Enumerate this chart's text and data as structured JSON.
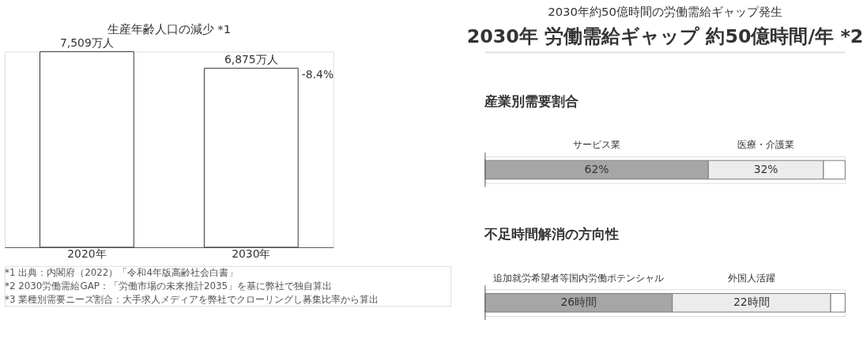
{
  "chart_data": [
    {
      "type": "bar",
      "title": "生産年齢人口の減少 *1",
      "categories": [
        "2020年",
        "2030年"
      ],
      "values": [
        7509,
        6875
      ],
      "value_labels": [
        "7,509万人",
        "6,875万人"
      ],
      "color": "#ffffff",
      "annotations": [
        "-8.4%",
        "*1 出典：内閣府（2022）「令和4年版高齢社会白書」",
        "*2 2030労働需給GAP：「労働市場の未来推計2035」を基に弊社で独自算出",
        "*3 業種別需要ニーズ割合：大手求人メディアを弊社でクローリングし募集比率から算出"
      ]
    },
    {
      "type": "other",
      "title": "2030年約50億時間の労働需給ギャップ発生",
      "subtitle": "2030年 労働需給ギャップ 約50億時間/年 *2"
    },
    {
      "type": "bar",
      "orientation": "horizontal",
      "stacked": true,
      "title": "産業別需要割合",
      "categories": [
        null
      ],
      "series": [
        {
          "name": "サービス業",
          "color": "#a6a6a6",
          "values": [
            62
          ],
          "value_labels": [
            "62%"
          ]
        },
        {
          "name": "医療・介護業",
          "color": "#ececec",
          "values": [
            32
          ],
          "value_labels": [
            "32%"
          ]
        },
        {
          "color": "#ffffff",
          "values": [
            6
          ],
          "value_labels": [
            null
          ]
        }
      ]
    },
    {
      "type": "bar",
      "orientation": "horizontal",
      "stacked": true,
      "title": "不足時間解消の方向性",
      "categories": [
        null
      ],
      "series": [
        {
          "name": "追加就労希望者等国内労働ポテンシャル",
          "color": "#a6a6a6",
          "values": [
            26
          ],
          "value_labels": [
            "26時間"
          ]
        },
        {
          "name": "外国人活躍",
          "color": "#ececec",
          "values": [
            22
          ],
          "value_labels": [
            "22時間"
          ]
        },
        {
          "color": "#ffffff",
          "values": [
            2
          ],
          "value_labels": [
            null
          ]
        }
      ]
    }
  ]
}
